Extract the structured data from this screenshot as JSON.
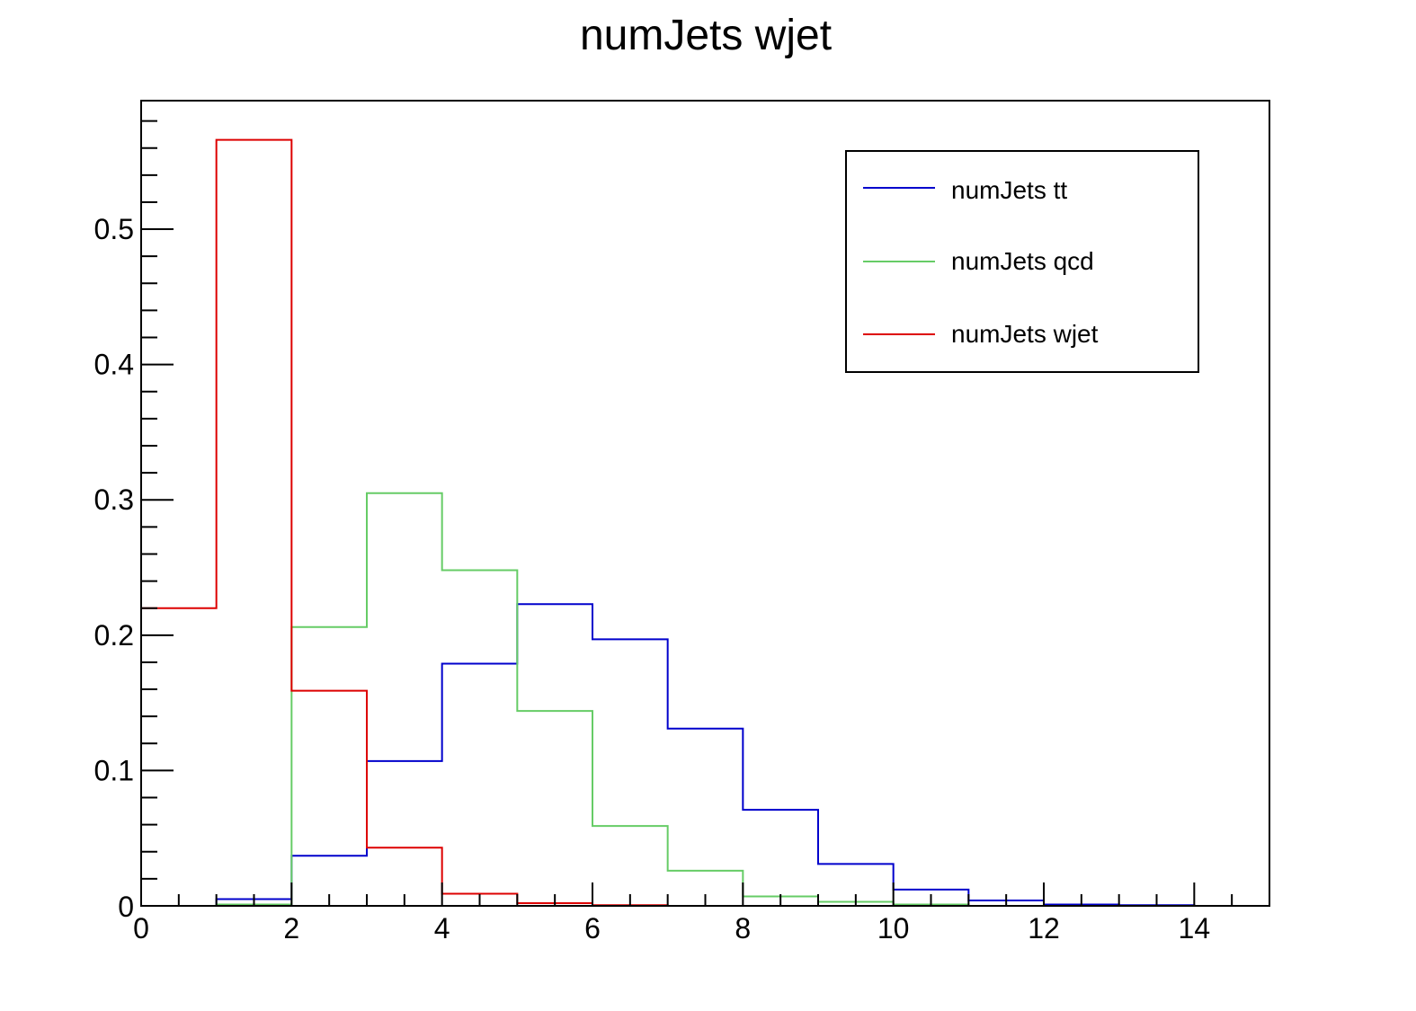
{
  "chart_data": {
    "type": "line",
    "title": "numJets wjet",
    "xlabel": "",
    "ylabel": "",
    "xlim": [
      0,
      15
    ],
    "ylim": [
      0,
      0.595
    ],
    "grid": false,
    "legend_position": "top-right",
    "x_ticks": [
      "0",
      "2",
      "4",
      "6",
      "8",
      "10",
      "12",
      "14"
    ],
    "y_ticks": [
      "0",
      "0.1",
      "0.2",
      "0.3",
      "0.4",
      "0.5"
    ],
    "bin_edges": [
      0,
      1,
      2,
      3,
      4,
      5,
      6,
      7,
      8,
      9,
      10,
      11,
      12,
      13,
      14,
      15
    ],
    "series": [
      {
        "name": "numJets tt",
        "color": "#0000cc",
        "values": [
          0,
          0.005,
          0.037,
          0.107,
          0.179,
          0.223,
          0.197,
          0.131,
          0.071,
          0.031,
          0.012,
          0.004,
          0.001,
          0.0005,
          0
        ]
      },
      {
        "name": "numJets qcd",
        "color": "#66cc66",
        "values": [
          0,
          0.001,
          0.206,
          0.305,
          0.248,
          0.144,
          0.059,
          0.026,
          0.007,
          0.003,
          0.001,
          0,
          0,
          0,
          0
        ]
      },
      {
        "name": "numJets wjet",
        "color": "#dd0000",
        "values": [
          0.22,
          0.566,
          0.159,
          0.043,
          0.009,
          0.002,
          0.0005,
          0,
          0,
          0,
          0,
          0,
          0,
          0,
          0
        ]
      }
    ]
  }
}
